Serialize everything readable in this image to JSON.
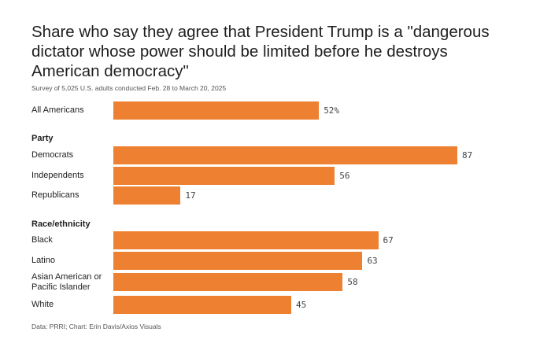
{
  "title": "Share who say they agree that President Trump is a \"dangerous dictator whose power should be limited before he destroys American democracy\"",
  "subtitle": "Survey of 5,025 U.S. adults conducted Feb. 28 to March 20, 2025",
  "footer": "Data: PRRI; Chart: Erin Davis/Axios Visuals",
  "colors": {
    "bar": "#ee8031"
  },
  "chart_data": {
    "type": "bar",
    "orientation": "horizontal",
    "unit": "%",
    "groups": [
      {
        "name": "",
        "categories": [
          "All Americans"
        ],
        "values": [
          52
        ],
        "labels": [
          "52%"
        ]
      },
      {
        "name": "Party",
        "categories": [
          "Democrats",
          "Independents",
          "Republicans"
        ],
        "values": [
          87,
          56,
          17
        ],
        "labels": [
          "87",
          "56",
          "17"
        ]
      },
      {
        "name": "Race/ethnicity",
        "categories": [
          "Black",
          "Latino",
          "Asian American or Pacific Islander",
          "White"
        ],
        "values": [
          67,
          63,
          58,
          45
        ],
        "labels": [
          "67",
          "63",
          "58",
          "45"
        ]
      }
    ]
  }
}
